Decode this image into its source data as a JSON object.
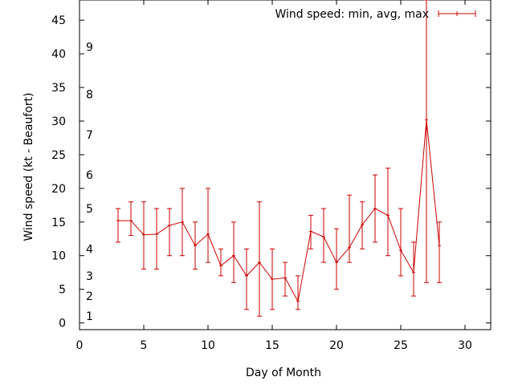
{
  "chart_data": {
    "type": "line",
    "title": "",
    "xlabel": "Day of Month",
    "ylabel": "Wind speed (kt - Beaufort)",
    "xlim": [
      0,
      32
    ],
    "ylim": [
      -1,
      48
    ],
    "xticks": [
      0,
      5,
      10,
      15,
      20,
      25,
      30
    ],
    "yticks": [
      0,
      5,
      10,
      15,
      20,
      25,
      30,
      35,
      40,
      45
    ],
    "legend_position": "top-right",
    "grid": false,
    "series": [
      {
        "name": "Wind speed: min, avg, max",
        "color": "#cc0000",
        "style": "line-with-error-bars",
        "x": [
          3,
          4,
          5,
          6,
          7,
          8,
          9,
          10,
          11,
          12,
          13,
          14,
          15,
          16,
          17,
          18,
          19,
          20,
          21,
          22,
          23,
          24,
          25,
          26,
          27,
          28
        ],
        "avg": [
          15.2,
          15.2,
          13.1,
          13.2,
          14.5,
          15.0,
          11.5,
          13.2,
          8.5,
          10.0,
          7.0,
          9.0,
          6.5,
          6.7,
          3.2,
          13.6,
          12.8,
          9.0,
          11.2,
          14.6,
          17.0,
          16.0,
          10.8,
          7.5,
          30.2,
          11.5
        ],
        "min": [
          12,
          13,
          8,
          8,
          10,
          10,
          8,
          9,
          7,
          6,
          2,
          1,
          2,
          4,
          2,
          11,
          9,
          5,
          9,
          11,
          12,
          10,
          7,
          4,
          6,
          6
        ],
        "max": [
          17,
          18,
          18,
          17,
          17,
          20,
          15,
          20,
          11,
          15,
          11,
          18,
          11,
          9,
          7,
          16,
          17,
          14,
          19,
          18,
          22,
          23,
          17,
          12,
          48,
          15
        ]
      }
    ],
    "beaufort_labels": [
      {
        "label": "1",
        "y": 1
      },
      {
        "label": "2",
        "y": 4
      },
      {
        "label": "3",
        "y": 7
      },
      {
        "label": "4",
        "y": 11
      },
      {
        "label": "5",
        "y": 17
      },
      {
        "label": "6",
        "y": 22
      },
      {
        "label": "7",
        "y": 28
      },
      {
        "label": "8",
        "y": 34
      },
      {
        "label": "9",
        "y": 41
      }
    ]
  }
}
